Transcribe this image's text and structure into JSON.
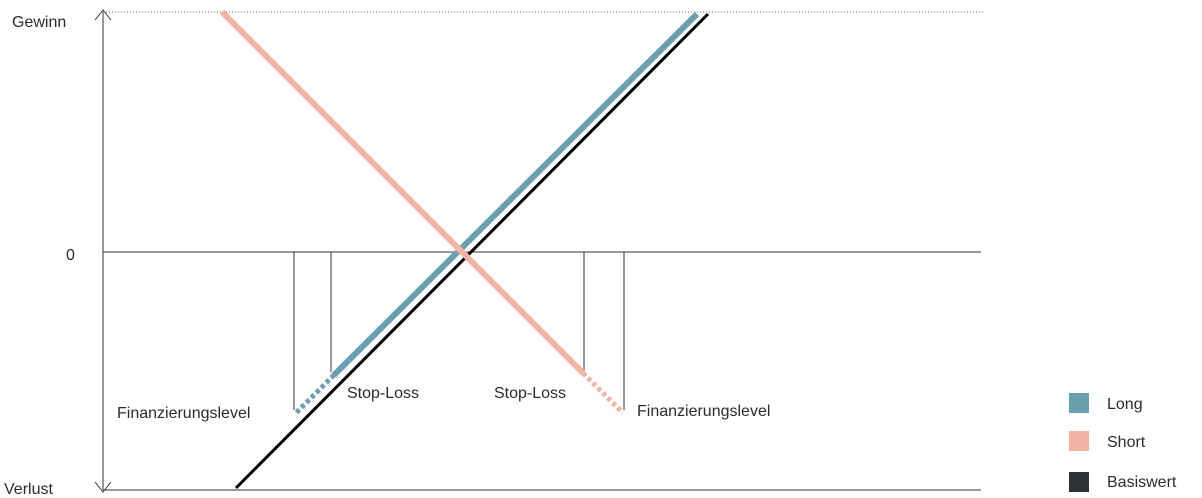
{
  "axis": {
    "y_top_label": "Gewinn",
    "y_zero_label": "0",
    "y_bottom_label": "Verlust"
  },
  "annotations": {
    "long_financing_level": "Finanzierungslevel",
    "long_stop_loss": "Stop-Loss",
    "short_stop_loss": "Stop-Loss",
    "short_financing_level": "Finanzierungslevel"
  },
  "legend": {
    "items": [
      {
        "label": "Long",
        "color": "#6a9fb0"
      },
      {
        "label": "Short",
        "color": "#f4b3a3"
      },
      {
        "label": "Basiswert",
        "color": "#2d3236"
      }
    ]
  },
  "colors": {
    "long": "#6a9fb0",
    "short": "#f4b3a3",
    "underlying": "#000000",
    "axis": "#333333"
  }
}
